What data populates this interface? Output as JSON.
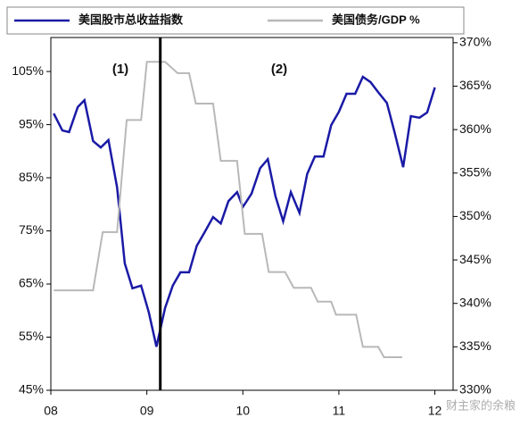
{
  "chart_data": {
    "type": "line",
    "x": [
      2008.03,
      2008.12,
      2008.19,
      2008.28,
      2008.35,
      2008.44,
      2008.52,
      2008.6,
      2008.69,
      2008.77,
      2008.85,
      2008.94,
      2009.02,
      2009.1,
      2009.19,
      2009.27,
      2009.35,
      2009.44,
      2009.52,
      2009.6,
      2009.69,
      2009.77,
      2009.85,
      2009.94,
      2010.0,
      2010.09,
      2010.18,
      2010.26,
      2010.34,
      2010.42,
      2010.5,
      2010.59,
      2010.67,
      2010.75,
      2010.84,
      2010.92,
      2011.0,
      2011.08,
      2011.17,
      2011.25,
      2011.33,
      2011.41,
      2011.5,
      2011.58,
      2011.67,
      2011.75,
      2011.84,
      2011.92,
      2012.0
    ],
    "series": [
      {
        "name": "美国股市总收益指数",
        "color": "#1a1aa6",
        "values": [
          97.1,
          93.9,
          93.6,
          98.3,
          99.6,
          91.9,
          90.7,
          92.1,
          83.2,
          68.9,
          64.2,
          64.7,
          59.7,
          53.2,
          60.5,
          64.7,
          67.2,
          67.2,
          72.2,
          74.7,
          77.6,
          76.4,
          80.6,
          82.3,
          79.5,
          82.0,
          86.8,
          88.5,
          81.5,
          76.8,
          82.3,
          78.4,
          85.7,
          89.0,
          89.0,
          94.9,
          97.4,
          100.8,
          100.8,
          104.0,
          103.0,
          101.1,
          99.1,
          93.6,
          87.0,
          96.6,
          96.3,
          97.3,
          102.0
        ]
      },
      {
        "name": "美国债务/GDP %",
        "color": "#b8b8b8",
        "axis": "y2",
        "x": [
          2008.03,
          2008.44,
          2008.54,
          2008.69,
          2008.79,
          2008.94,
          2009.0,
          2009.19,
          2009.32,
          2009.44,
          2009.51,
          2009.69,
          2009.77,
          2009.94,
          2010.02,
          2010.2,
          2010.27,
          2010.44,
          2010.53,
          2010.71,
          2010.78,
          2010.92,
          2010.97,
          2011.18,
          2011.25,
          2011.41,
          2011.47,
          2011.66
        ],
        "values": [
          341.5,
          341.5,
          348.2,
          348.2,
          361.1,
          361.1,
          367.8,
          367.8,
          366.5,
          366.5,
          363.0,
          363.0,
          356.4,
          356.4,
          348.0,
          348.0,
          343.6,
          343.6,
          341.8,
          341.8,
          340.2,
          340.2,
          338.7,
          338.7,
          335.0,
          335.0,
          333.8,
          333.8
        ]
      }
    ],
    "xlim": [
      2008,
      2012.19
    ],
    "xticks": [
      {
        "value": 2008,
        "label": "08"
      },
      {
        "value": 2009,
        "label": "09"
      },
      {
        "value": 2010,
        "label": "10"
      },
      {
        "value": 2011,
        "label": "11"
      },
      {
        "value": 2012,
        "label": "12"
      }
    ],
    "ylim": [
      45,
      111.4
    ],
    "yticks": [
      {
        "value": 45,
        "label": "45%"
      },
      {
        "value": 55,
        "label": "55%"
      },
      {
        "value": 65,
        "label": "65%"
      },
      {
        "value": 75,
        "label": "75%"
      },
      {
        "value": 85,
        "label": "85%"
      },
      {
        "value": 95,
        "label": "95%"
      },
      {
        "value": 105,
        "label": "105%"
      }
    ],
    "y2lim": [
      330,
      370.6
    ],
    "y2ticks": [
      {
        "value": 330,
        "label": "330%"
      },
      {
        "value": 335,
        "label": "335%"
      },
      {
        "value": 340,
        "label": "340%"
      },
      {
        "value": 345,
        "label": "345%"
      },
      {
        "value": 350,
        "label": "350%"
      },
      {
        "value": 355,
        "label": "355%"
      },
      {
        "value": 360,
        "label": "360%"
      },
      {
        "value": 365,
        "label": "365%"
      },
      {
        "value": 370,
        "label": "370%"
      }
    ],
    "vline_x": 2009.14,
    "annotations": [
      "(1)",
      "(2)"
    ],
    "watermark": "财主家的余粮",
    "legend": "top"
  }
}
